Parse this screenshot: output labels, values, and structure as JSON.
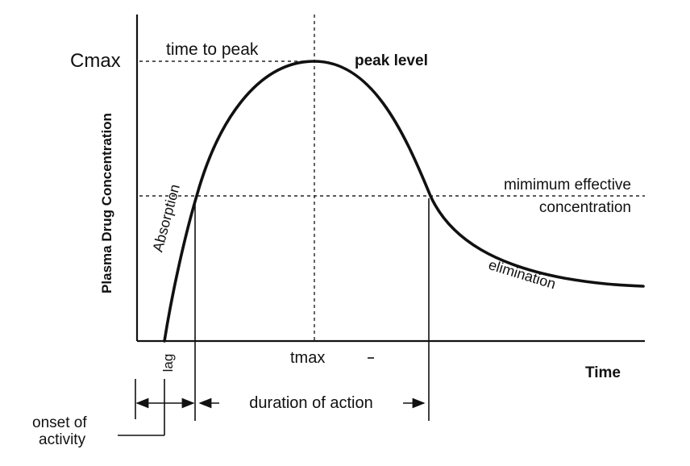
{
  "diagram": {
    "y_axis_label": "Plasma Drug Concentration",
    "x_axis_label": "Time",
    "cmax_label": "Cmax",
    "tmax_label": "tmax",
    "time_to_peak": "time to peak",
    "peak_level": "peak level",
    "mec_line1": "mimimum effective",
    "mec_line2": "concentration",
    "absorption": "Absorption",
    "elimination": "elimination",
    "lag": "lag",
    "duration": "duration of action",
    "onset_line1": "onset of",
    "onset_line2": "activity"
  }
}
